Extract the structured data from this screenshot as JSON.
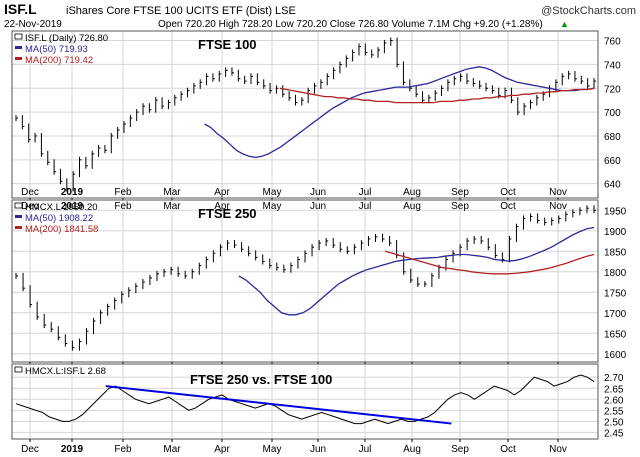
{
  "header": {
    "symbol": "ISF.L",
    "name": "iShares Core FTSE 100 UCITS ETF (Dist) LSE",
    "watermark": "@StockCharts.com",
    "date": "22-Nov-2019",
    "ohlc": "Open 720.20  High 728.20  Low 720.20  Close 726.80  Volume 7.1M  Chg +9.20 (+1.28%)",
    "ohlc_marker": "▲"
  },
  "colors": {
    "price": "#000000",
    "ma50": "#2a2a9a",
    "ma200": "#b22222",
    "trendline": "#0000e0",
    "grid": "#d6d6d6",
    "panel_border": "#555555"
  },
  "chart_data": [
    {
      "type": "line",
      "panel": "price",
      "title": "FTSE 100",
      "legend": [
        "ISF.L (Daily) 726.80",
        "MA(50) 719.93",
        "MA(200) 719.42"
      ],
      "x_ticks": [
        "Dec",
        "2019",
        "Feb",
        "Mar",
        "Apr",
        "May",
        "Jun",
        "Jul",
        "Aug",
        "Sep",
        "Oct",
        "Nov"
      ],
      "y_ticks": [
        640,
        660,
        680,
        700,
        720,
        740,
        760
      ],
      "ylim": [
        628,
        768
      ],
      "grid": true,
      "series": [
        {
          "values": [
            695,
            688,
            677,
            680,
            665,
            658,
            650,
            642,
            636,
            648,
            660,
            655,
            665,
            670,
            668,
            680,
            685,
            690,
            695,
            700,
            705,
            702,
            710,
            705,
            708,
            712,
            715,
            718,
            722,
            725,
            730,
            728,
            732,
            735,
            733,
            728,
            726,
            730,
            725,
            722,
            718,
            720,
            715,
            712,
            708,
            710,
            718,
            722,
            725,
            730,
            735,
            740,
            745,
            750,
            755,
            750,
            748,
            752,
            758,
            760,
            740,
            725,
            720,
            715,
            710,
            712,
            716,
            720,
            725,
            728,
            730,
            726,
            724,
            722,
            720,
            718,
            714,
            718,
            710,
            700,
            705,
            708,
            712,
            715,
            720,
            725,
            730,
            732,
            728,
            726,
            722,
            726
          ]
        },
        {
          "name": "MA(50)",
          "values": [
            690,
            687,
            682,
            678,
            673,
            668,
            665,
            663,
            662,
            663,
            665,
            668,
            671,
            675,
            679,
            683,
            687,
            691,
            695,
            699,
            703,
            706,
            709,
            712,
            714,
            716,
            717,
            718,
            719,
            720,
            721,
            721,
            721,
            722,
            723,
            724,
            726,
            728,
            730,
            732,
            734,
            736,
            737,
            738,
            737,
            735,
            732,
            729,
            727,
            725,
            724,
            723,
            722,
            721,
            720,
            719,
            718,
            718,
            718,
            719,
            719,
            720
          ]
        },
        {
          "name": "MA(200)",
          "values": [
            720,
            719,
            718,
            717,
            716,
            715,
            714,
            713,
            713,
            712,
            712,
            711,
            711,
            710,
            710,
            709,
            709,
            709,
            708,
            708,
            708,
            708,
            708,
            708,
            708,
            709,
            709,
            709,
            710,
            710,
            711,
            711,
            712,
            712,
            713,
            713,
            714,
            714,
            715,
            715,
            716,
            716,
            717,
            717,
            718,
            718,
            719,
            719,
            719,
            720
          ]
        }
      ]
    },
    {
      "type": "line",
      "panel": "mid",
      "title": "FTSE 250",
      "legend": [
        "HMCX.L 1950.20",
        "MA(50) 1908.22",
        "MA(200) 1841.58"
      ],
      "x_ticks": [
        "Dec",
        "2019",
        "Feb",
        "Mar",
        "Apr",
        "May",
        "Jun",
        "Jul",
        "Aug",
        "Sep",
        "Oct",
        "Nov"
      ],
      "y_ticks": [
        1600,
        1650,
        1700,
        1750,
        1800,
        1850,
        1900,
        1950
      ],
      "ylim": [
        1580,
        1975
      ],
      "grid": true,
      "series": [
        {
          "values": [
            1790,
            1760,
            1720,
            1690,
            1670,
            1660,
            1640,
            1625,
            1615,
            1630,
            1655,
            1680,
            1700,
            1715,
            1730,
            1745,
            1755,
            1765,
            1775,
            1785,
            1795,
            1800,
            1805,
            1795,
            1790,
            1800,
            1815,
            1830,
            1845,
            1860,
            1870,
            1865,
            1855,
            1845,
            1835,
            1825,
            1815,
            1810,
            1805,
            1815,
            1830,
            1845,
            1860,
            1870,
            1875,
            1865,
            1855,
            1850,
            1860,
            1870,
            1880,
            1885,
            1880,
            1870,
            1840,
            1800,
            1780,
            1770,
            1770,
            1790,
            1810,
            1830,
            1845,
            1860,
            1875,
            1880,
            1875,
            1860,
            1840,
            1830,
            1880,
            1910,
            1930,
            1935,
            1925,
            1920,
            1925,
            1930,
            1940,
            1945,
            1950,
            1955,
            1950
          ]
        },
        {
          "name": "MA(50)",
          "values": [
            1790,
            1780,
            1765,
            1750,
            1730,
            1715,
            1700,
            1695,
            1695,
            1700,
            1710,
            1725,
            1740,
            1755,
            1770,
            1780,
            1790,
            1798,
            1805,
            1810,
            1815,
            1820,
            1825,
            1828,
            1830,
            1832,
            1833,
            1834,
            1835,
            1838,
            1840,
            1842,
            1842,
            1840,
            1838,
            1835,
            1830,
            1828,
            1826,
            1828,
            1832,
            1838,
            1845,
            1852,
            1860,
            1870,
            1880,
            1890,
            1898,
            1905,
            1908
          ]
        },
        {
          "name": "MA(200)",
          "values": [
            1850,
            1845,
            1840,
            1835,
            1830,
            1825,
            1820,
            1815,
            1810,
            1808,
            1805,
            1803,
            1800,
            1798,
            1796,
            1795,
            1795,
            1795,
            1796,
            1798,
            1800,
            1803,
            1806,
            1810,
            1815,
            1820,
            1826,
            1832,
            1838,
            1842
          ]
        }
      ]
    },
    {
      "type": "line",
      "panel": "ratio",
      "title": "FTSE 250 vs. FTSE 100",
      "legend": [
        "HMCX.L:ISF.L 2.68"
      ],
      "x_ticks": [
        "Dec",
        "2019",
        "Feb",
        "Mar",
        "Apr",
        "May",
        "Jun",
        "Jul",
        "Aug",
        "Sep",
        "Oct",
        "Nov"
      ],
      "y_ticks": [
        2.45,
        2.5,
        2.55,
        2.6,
        2.65,
        2.7
      ],
      "ylim": [
        2.42,
        2.76
      ],
      "grid": true,
      "series": [
        {
          "values": [
            2.58,
            2.57,
            2.56,
            2.55,
            2.54,
            2.52,
            2.51,
            2.5,
            2.5,
            2.51,
            2.53,
            2.56,
            2.59,
            2.62,
            2.65,
            2.66,
            2.64,
            2.62,
            2.6,
            2.59,
            2.58,
            2.59,
            2.6,
            2.61,
            2.59,
            2.57,
            2.55,
            2.56,
            2.58,
            2.6,
            2.61,
            2.62,
            2.6,
            2.59,
            2.58,
            2.57,
            2.56,
            2.57,
            2.58,
            2.57,
            2.55,
            2.53,
            2.52,
            2.51,
            2.52,
            2.53,
            2.54,
            2.53,
            2.52,
            2.51,
            2.5,
            2.49,
            2.49,
            2.5,
            2.51,
            2.5,
            2.49,
            2.5,
            2.51,
            2.5,
            2.5,
            2.51,
            2.52,
            2.54,
            2.57,
            2.6,
            2.62,
            2.63,
            2.62,
            2.6,
            2.62,
            2.64,
            2.66,
            2.65,
            2.64,
            2.62,
            2.64,
            2.67,
            2.7,
            2.69,
            2.68,
            2.66,
            2.67,
            2.68,
            2.7,
            2.71,
            2.7,
            2.68
          ]
        },
        {
          "name": "trendline",
          "x_range": [
            0.16,
            0.75
          ],
          "values": [
            2.66,
            2.49
          ]
        }
      ]
    }
  ]
}
